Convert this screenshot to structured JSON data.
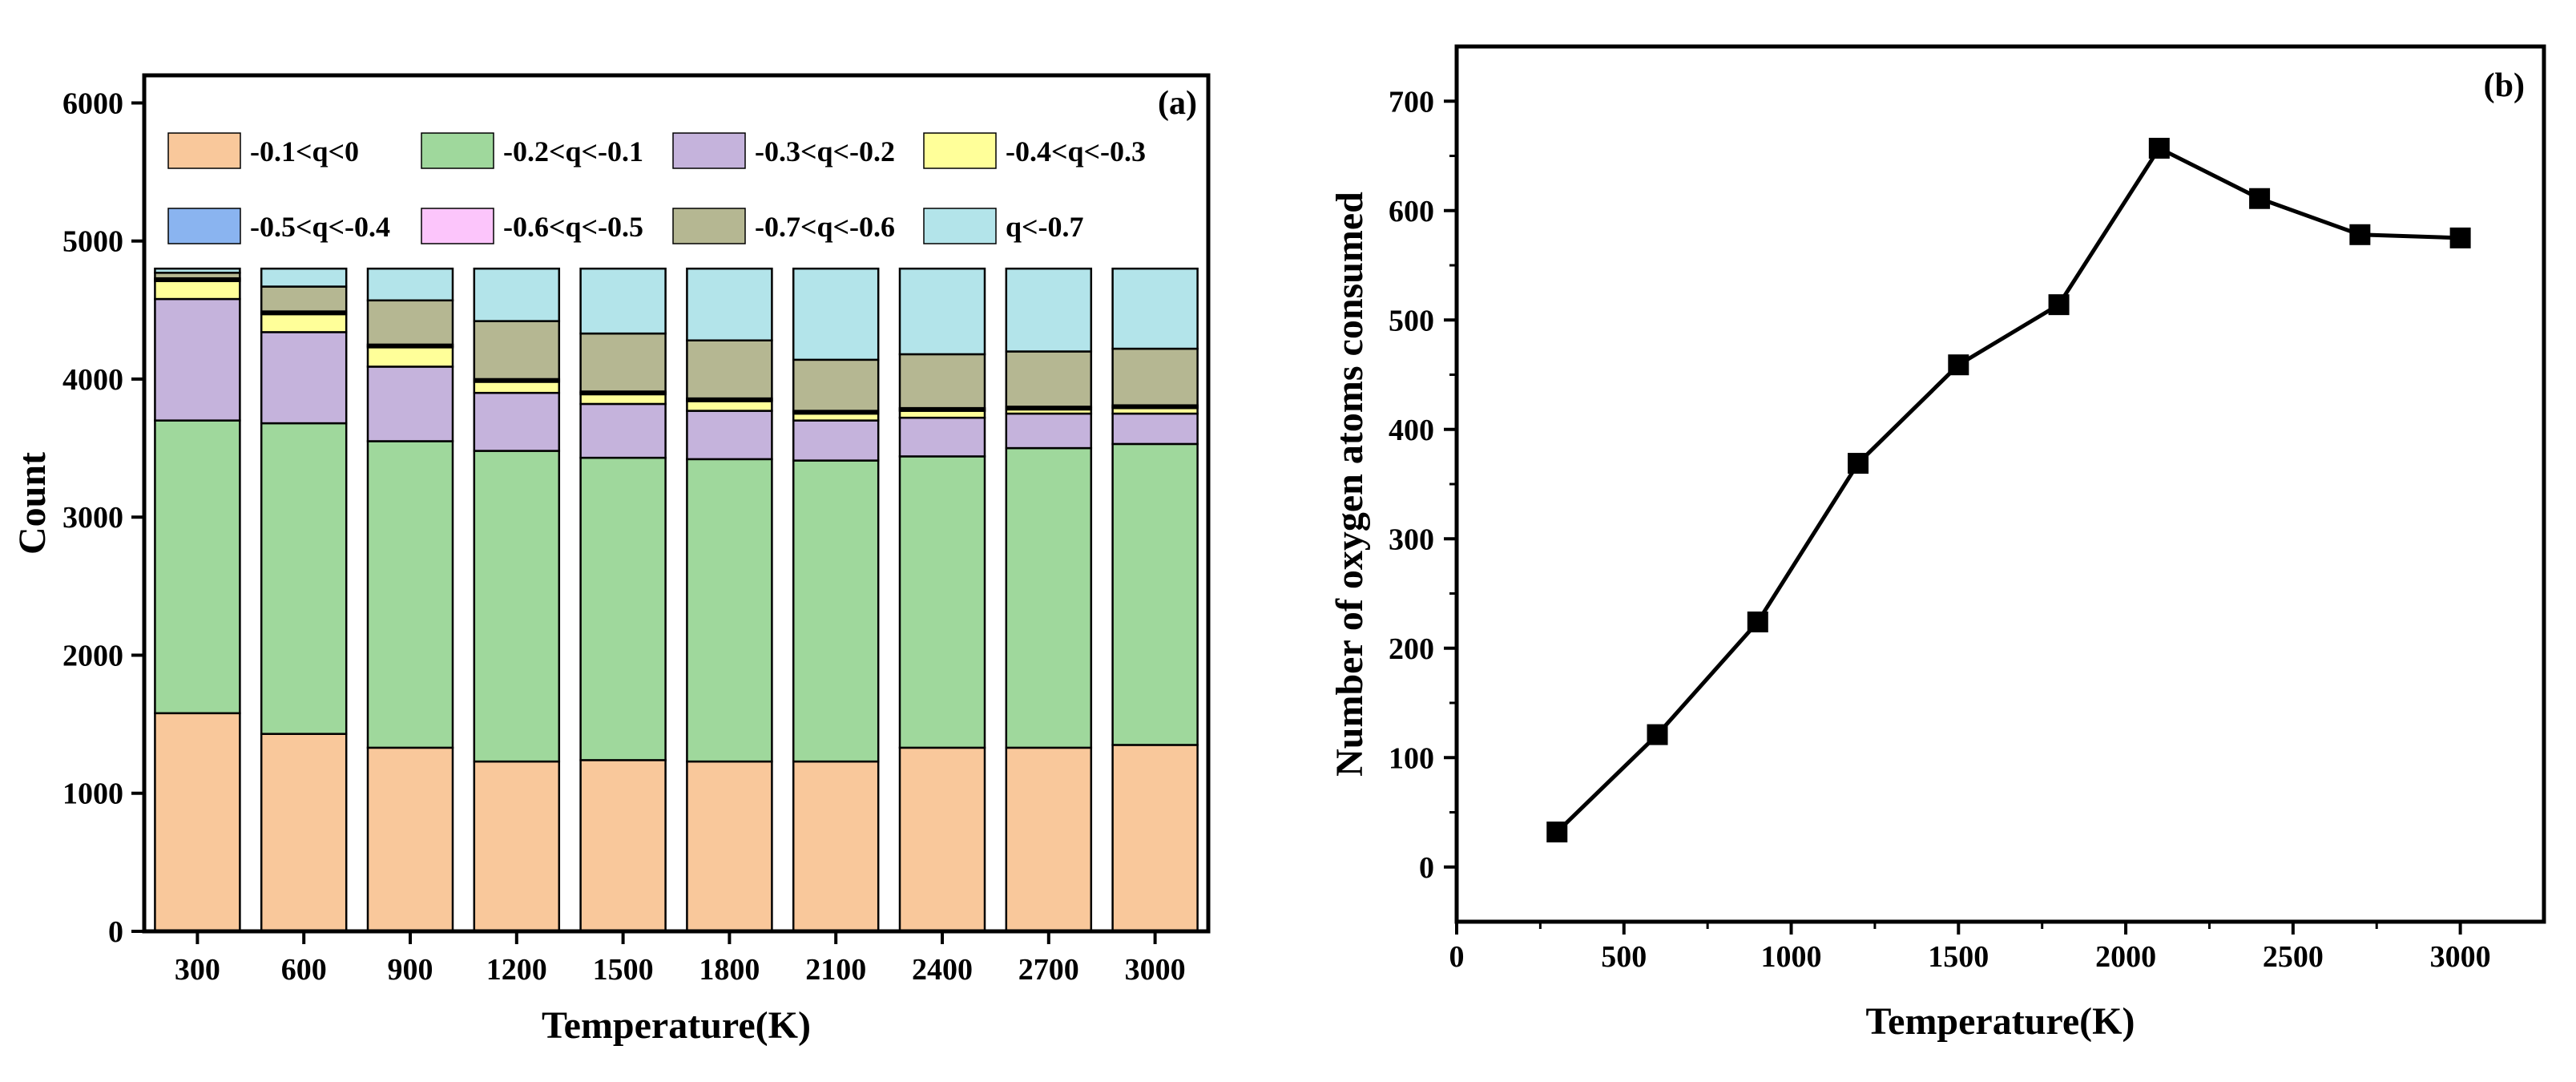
{
  "chart_data": [
    {
      "type": "bar",
      "stacked": true,
      "panel_label": "(a)",
      "title": "",
      "xlabel": "Temperature(K)",
      "ylabel": "Count",
      "ylim": [
        0,
        6200
      ],
      "yticks": [
        0,
        1000,
        2000,
        3000,
        4000,
        5000,
        6000
      ],
      "legend_position": "top",
      "categories": [
        "300",
        "600",
        "900",
        "1200",
        "1500",
        "1800",
        "2100",
        "2400",
        "2700",
        "3000"
      ],
      "series": [
        {
          "name": "-0.1<q<0",
          "color": "#f9c89b",
          "values": [
            1580,
            1430,
            1330,
            1230,
            1240,
            1230,
            1230,
            1330,
            1330,
            1350
          ]
        },
        {
          "name": "-0.2<q<-0.1",
          "color": "#9fd89c",
          "values": [
            2120,
            2250,
            2220,
            2250,
            2190,
            2190,
            2180,
            2110,
            2170,
            2180
          ]
        },
        {
          "name": "-0.3<q<-0.2",
          "color": "#c5b3dc",
          "values": [
            880,
            660,
            540,
            420,
            390,
            350,
            290,
            280,
            250,
            220
          ]
        },
        {
          "name": "-0.4<q<-0.3",
          "color": "#ffff99",
          "values": [
            130,
            130,
            140,
            80,
            70,
            70,
            50,
            50,
            30,
            40
          ]
        },
        {
          "name": "-0.5<q<-0.4",
          "color": "#8ab4f0",
          "values": [
            10,
            10,
            10,
            10,
            10,
            10,
            10,
            10,
            10,
            10
          ]
        },
        {
          "name": "-0.6<q<-0.5",
          "color": "#fcc5fb",
          "values": [
            10,
            10,
            10,
            10,
            10,
            10,
            10,
            10,
            10,
            10
          ]
        },
        {
          "name": "-0.7<q<-0.6",
          "color": "#b5b792",
          "values": [
            40,
            180,
            320,
            420,
            420,
            420,
            370,
            390,
            400,
            410
          ]
        },
        {
          "name": "q<-0.7",
          "color": "#b3e4ea",
          "values": [
            30,
            130,
            230,
            380,
            470,
            520,
            660,
            620,
            600,
            580
          ]
        }
      ]
    },
    {
      "type": "line",
      "panel_label": "(b)",
      "title": "",
      "xlabel": "Temperature(K)",
      "ylabel": "Number of oxygen atoms consumed",
      "xlim": [
        0,
        3250
      ],
      "ylim": [
        -50,
        750
      ],
      "xticks": [
        0,
        500,
        1000,
        1500,
        2000,
        2500,
        3000
      ],
      "yticks": [
        0,
        100,
        200,
        300,
        400,
        500,
        600,
        700
      ],
      "series": [
        {
          "name": "Oxygen atoms consumed",
          "color": "#000000",
          "x": [
            300,
            600,
            900,
            1200,
            1500,
            1800,
            2100,
            2400,
            2700,
            3000
          ],
          "y": [
            32,
            121,
            224,
            369,
            459,
            514,
            657,
            611,
            578,
            575
          ]
        }
      ]
    }
  ]
}
